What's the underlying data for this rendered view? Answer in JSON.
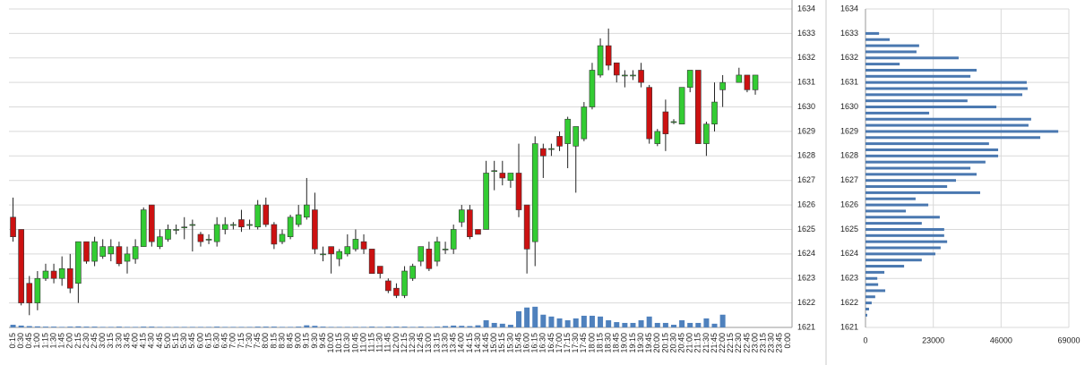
{
  "chart_data": [
    {
      "type": "candlestick",
      "x": [
        "0:15",
        "0:30",
        "0:45",
        "1:00",
        "1:15",
        "1:30",
        "1:45",
        "2:00",
        "2:15",
        "2:30",
        "2:45",
        "3:00",
        "3:15",
        "3:30",
        "3:45",
        "4:00",
        "4:15",
        "4:30",
        "4:45",
        "5:00",
        "5:15",
        "5:30",
        "5:45",
        "6:00",
        "6:15",
        "6:30",
        "6:45",
        "7:00",
        "7:15",
        "7:30",
        "7:45",
        "8:00",
        "8:15",
        "8:30",
        "8:45",
        "9:00",
        "9:15",
        "9:30",
        "9:45",
        "10:00",
        "10:15",
        "10:30",
        "10:45",
        "11:00",
        "11:15",
        "11:30",
        "11:45",
        "12:00",
        "12:15",
        "12:30",
        "12:45",
        "13:00",
        "13:15",
        "13:30",
        "13:45",
        "14:00",
        "14:15",
        "14:30",
        "14:45",
        "15:00",
        "15:15",
        "15:30",
        "15:45",
        "16:00",
        "16:15",
        "16:30",
        "16:45",
        "17:00",
        "17:15",
        "17:30",
        "17:45",
        "18:00",
        "18:15",
        "18:30",
        "18:45",
        "19:00",
        "19:15",
        "19:30",
        "19:45",
        "20:00",
        "20:15",
        "20:30",
        "20:45",
        "21:00",
        "21:15",
        "21:30",
        "21:45",
        "22:00",
        "22:15",
        "22:30",
        "22:45",
        "23:00",
        "23:15",
        "23:30",
        "23:45",
        "0:00"
      ],
      "open": [
        1625.5,
        1625,
        1622.8,
        1622.0,
        1623.0,
        1623.3,
        1623.0,
        1623.4,
        1622.8,
        1624.5,
        1623.7,
        1623.9,
        1624.0,
        1624.3,
        1623.7,
        1623.8,
        1624.3,
        1626,
        1624.3,
        1624.6,
        1625.0,
        1625.1,
        1625.2,
        1624.8,
        1624.6,
        1624.5,
        1625.0,
        1625.2,
        1625.4,
        1625.2,
        1625.1,
        1626.0,
        1625.2,
        1624.5,
        1624.7,
        1625.2,
        1625.5,
        1625.8,
        1624.0,
        1624.3,
        1623.8,
        1624.0,
        1624.2,
        1624.5,
        1624.2,
        1623.5,
        1622.9,
        1622.6,
        1622.3,
        1623.0,
        1623.7,
        1624.2,
        1623.7,
        1624.2,
        1624.2,
        1625.3,
        1625.8,
        1625.0,
        1625.0,
        1627.4,
        1627.3,
        1627.0,
        1627.3,
        1626.0,
        1624.5,
        1628.3,
        1628.3,
        1628.8,
        1628.5,
        1628.4,
        1628.7,
        1630.0,
        1631.3,
        1632.5,
        1631.8,
        1631.3,
        1631.3,
        1631.5,
        1630.8,
        1628.5,
        1629.8,
        1629.4,
        1629.3,
        1630.8,
        1631.5,
        1628.5,
        1629.3,
        1630.7,
        null,
        1631.0,
        1631.3,
        1630.7,
        null,
        null,
        null,
        null
      ],
      "high": [
        1626.3,
        1625,
        1623.1,
        1623.3,
        1623.6,
        1623.6,
        1623.9,
        1624.0,
        1624.5,
        1624.5,
        1624.7,
        1624.6,
        1624.6,
        1624.5,
        1624.3,
        1624.6,
        1625.9,
        1626,
        1625,
        1625.2,
        1625.2,
        1625.5,
        1625.4,
        1624.9,
        1624.8,
        1625.5,
        1625.5,
        1625.3,
        1625.8,
        1625.4,
        1626.2,
        1626.3,
        1625.3,
        1625,
        1625.6,
        1626,
        1627.1,
        1626.5,
        1624.3,
        1624.3,
        1624.2,
        1624.8,
        1625.0,
        1624.8,
        1624.2,
        1623.5,
        1623.0,
        1622.8,
        1623.5,
        1623.6,
        1624.3,
        1624.5,
        1624.7,
        1624.5,
        1625.2,
        1626.0,
        1626.0,
        1625.0,
        1627.8,
        1627.8,
        1627.8,
        1627.3,
        1628.5,
        1626.0,
        1628.8,
        1628.5,
        1628.5,
        1629.0,
        1629.6,
        1629.2,
        1630.2,
        1631.8,
        1632.8,
        1633.2,
        1631.8,
        1631.5,
        1631.5,
        1631.8,
        1630.9,
        1629.1,
        1630.3,
        1629.5,
        1630.8,
        1631.5,
        1631.5,
        1629.4,
        1631.0,
        1631.3,
        null,
        1631.6,
        1631.3,
        1631.3,
        null,
        null,
        null,
        null
      ],
      "low": [
        1624.5,
        1621.9,
        1621.5,
        1621.7,
        1622.9,
        1622.8,
        1622.7,
        1622.4,
        1622.0,
        1623.6,
        1623.5,
        1623.8,
        1623.7,
        1623.5,
        1623.2,
        1623.6,
        1624.3,
        1624.3,
        1624.2,
        1624.5,
        1624.8,
        1624.6,
        1624.1,
        1624.3,
        1624.4,
        1624.3,
        1624.8,
        1625.0,
        1624.9,
        1625.0,
        1625.0,
        1625.1,
        1624.2,
        1624.4,
        1624.6,
        1625.1,
        1625.4,
        1624.0,
        1623.7,
        1623.2,
        1623.5,
        1623.9,
        1624.1,
        1624.0,
        1623.2,
        1623.0,
        1622.4,
        1622.2,
        1622.2,
        1622.9,
        1623.5,
        1623.3,
        1623.5,
        1624.0,
        1624.0,
        1625.1,
        1624.6,
        1624.8,
        1625.0,
        1626.6,
        1626.8,
        1626.7,
        1625.5,
        1623.2,
        1623.5,
        1627.1,
        1628.0,
        1628.2,
        1627.5,
        1626.5,
        1628.6,
        1629.9,
        1631.2,
        1631.5,
        1631.0,
        1630.8,
        1631.1,
        1630.8,
        1628.5,
        1628.4,
        1628.2,
        1629.3,
        1629.3,
        1630.6,
        1628.5,
        1628.0,
        1629.0,
        1630.0,
        null,
        1631.0,
        1630.6,
        1630.5,
        null,
        null,
        null,
        null
      ],
      "close": [
        1624.7,
        1622,
        1622.0,
        1623.0,
        1623.3,
        1623.0,
        1623.4,
        1622.6,
        1624.5,
        1623.7,
        1624.5,
        1624.3,
        1624.3,
        1623.6,
        1624.0,
        1624.3,
        1625.8,
        1624.5,
        1624.7,
        1625.0,
        1625.0,
        1625.1,
        1625.2,
        1624.5,
        1624.6,
        1625.2,
        1625.2,
        1625.2,
        1625.1,
        1625.2,
        1626.0,
        1625.2,
        1624.4,
        1624.8,
        1625.5,
        1625.6,
        1626.0,
        1624.2,
        1624.0,
        1624.0,
        1624.1,
        1624.3,
        1624.6,
        1624.2,
        1623.2,
        1623.2,
        1622.5,
        1622.3,
        1623.3,
        1623.5,
        1624.3,
        1623.4,
        1624.5,
        1624.2,
        1625.0,
        1625.8,
        1624.7,
        1624.8,
        1627.3,
        1627.4,
        1627.1,
        1627.3,
        1625.8,
        1624.2,
        1628.5,
        1628.0,
        1628.3,
        1628.4,
        1629.5,
        1629.2,
        1630.0,
        1631.5,
        1632.5,
        1631.7,
        1631.3,
        1631.3,
        1631.3,
        1631.0,
        1628.7,
        1629.0,
        1628.9,
        1629.4,
        1630.8,
        1631.5,
        1628.5,
        1629.3,
        1630.2,
        1631.0,
        null,
        1631.3,
        1630.7,
        1631.3,
        null,
        null,
        null,
        null
      ],
      "up_color": "#33cc33",
      "down_color": "#cc1111",
      "ylim": [
        1621,
        1634
      ],
      "yticks": [
        1621,
        1622,
        1623,
        1624,
        1625,
        1626,
        1627,
        1628,
        1629,
        1630,
        1631,
        1632,
        1633,
        1634
      ],
      "grid": true,
      "volume": {
        "axis": "y2",
        "color": "#4f81bd",
        "values": [
          10000,
          7000,
          5000,
          4000,
          3000,
          3000,
          2000,
          3000,
          4000,
          3000,
          3000,
          2000,
          2000,
          3000,
          2000,
          2000,
          3000,
          3000,
          2000,
          2000,
          2000,
          2000,
          2000,
          2000,
          2000,
          3000,
          2000,
          2000,
          2000,
          2000,
          3000,
          3000,
          3000,
          2000,
          2000,
          3000,
          8000,
          6000,
          3000,
          2000,
          2000,
          2000,
          2000,
          2000,
          3000,
          2000,
          3000,
          3000,
          3000,
          2000,
          3000,
          2000,
          3000,
          5000,
          7000,
          6000,
          5000,
          8000,
          27000,
          17000,
          14000,
          10000,
          61000,
          75000,
          78000,
          48000,
          41000,
          34000,
          27000,
          34000,
          44000,
          44000,
          41000,
          27000,
          20000,
          17000,
          17000,
          27000,
          41000,
          17000,
          17000,
          10000,
          27000,
          17000,
          17000,
          34000,
          14000,
          48000,
          null,
          null,
          null,
          null,
          null,
          null,
          null,
          null
        ]
      },
      "y2lim": [
        0,
        1200000
      ]
    },
    {
      "type": "bar",
      "orientation": "horizontal",
      "y": [
        1633,
        1632.75,
        1632.5,
        1632.25,
        1632,
        1631.75,
        1631.5,
        1631.25,
        1631,
        1630.75,
        1630.5,
        1630.25,
        1630,
        1629.75,
        1629.5,
        1629.25,
        1629,
        1628.75,
        1628.5,
        1628.25,
        1628,
        1627.75,
        1627.5,
        1627.25,
        1627,
        1626.75,
        1626.5,
        1626.25,
        1626,
        1625.75,
        1625.5,
        1625.25,
        1625,
        1624.75,
        1624.5,
        1624.25,
        1624,
        1623.75,
        1623.5,
        1623.25,
        1623,
        1622.75,
        1622.5,
        1622.25,
        1622,
        1621.75,
        1621.5
      ],
      "values": [
        4600,
        8200,
        18200,
        17300,
        31600,
        11600,
        37700,
        35600,
        54700,
        55000,
        53200,
        34600,
        44400,
        21600,
        56200,
        55300,
        65400,
        59300,
        41900,
        45000,
        45000,
        40700,
        35600,
        37700,
        30700,
        27700,
        38900,
        17000,
        21300,
        13700,
        25200,
        19100,
        26700,
        26700,
        27700,
        25500,
        23700,
        19100,
        13100,
        6400,
        4000,
        4300,
        6700,
        3300,
        2100,
        1200,
        600
      ],
      "color": "#4a78b0",
      "xlim": [
        0,
        69000
      ],
      "xticks": [
        0,
        23000,
        46000,
        69000
      ],
      "ylim": [
        1621,
        1634
      ],
      "yticks": [
        1621,
        1622,
        1623,
        1624,
        1625,
        1626,
        1627,
        1628,
        1629,
        1630,
        1631,
        1632,
        1633,
        1634
      ],
      "grid": true
    }
  ]
}
